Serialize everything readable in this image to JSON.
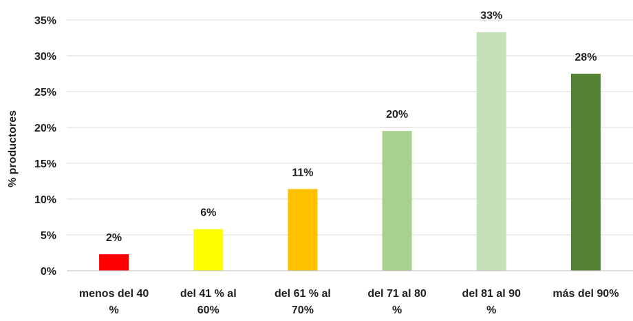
{
  "chart_data": {
    "type": "bar",
    "title": "",
    "xlabel": "",
    "ylabel": "% productores",
    "categories": [
      [
        "menos del 40",
        "%"
      ],
      [
        "del 41 % al",
        "60%"
      ],
      [
        "del 61 % al",
        "70%"
      ],
      [
        "del 71 al 80",
        "%"
      ],
      [
        "del 81 al 90",
        "%"
      ],
      [
        "más del 90%"
      ]
    ],
    "values": [
      2.3,
      5.8,
      11.4,
      19.5,
      33.3,
      27.5
    ],
    "data_labels": [
      "2%",
      "6%",
      "11%",
      "20%",
      "33%",
      "28%"
    ],
    "colors": [
      "#ff0000",
      "#ffff00",
      "#ffc000",
      "#a9d18e",
      "#c5e0b4",
      "#548235"
    ],
    "ylim": [
      0,
      35
    ],
    "yticks": [
      0,
      5,
      10,
      15,
      20,
      25,
      30,
      35
    ],
    "ytick_labels": [
      "0%",
      "5%",
      "10%",
      "15%",
      "20%",
      "25%",
      "30%",
      "35%"
    ],
    "grid": true,
    "legend": "none"
  }
}
